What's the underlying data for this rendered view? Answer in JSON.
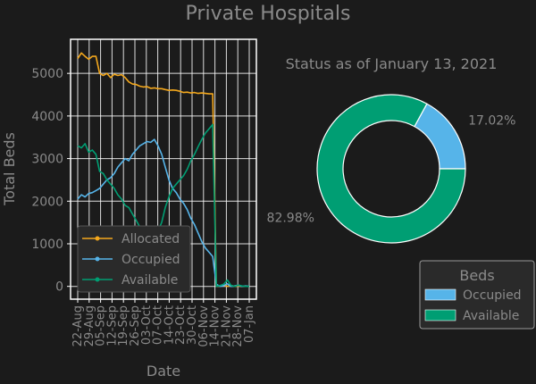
{
  "figure_title": "Private Hospitals",
  "colors": {
    "background": "#1b1b1b",
    "text": "#8a8a8a",
    "axis": "#ffffff",
    "grid": "#ffffff",
    "allocated": "#f4a81d",
    "occupied": "#56b4e9",
    "available": "#009e73"
  },
  "chart_data": [
    {
      "type": "line",
      "xlabel": "Date",
      "ylabel": "Total Beds",
      "ylim": [
        -300,
        5800
      ],
      "yticks": [
        0,
        1000,
        2000,
        3000,
        4000,
        5000
      ],
      "grid": true,
      "legend_position": "lower-left",
      "xtick_labels": [
        "22-Aug",
        "29-Aug",
        "05-Sep",
        "12-Sep",
        "19-Sep",
        "26-Sep",
        "03-Oct",
        "07-Oct",
        "14-Oct",
        "23-Oct",
        "30-Oct",
        "06-Nov",
        "14-Nov",
        "21-Nov",
        "28-Nov",
        "07-Jan"
      ],
      "series": [
        {
          "name": "Allocated",
          "color": "#f4a81d",
          "values": [
            5350,
            5480,
            5400,
            5330,
            5400,
            5400,
            5000,
            4950,
            5000,
            4900,
            4980,
            4950,
            4970,
            4900,
            4800,
            4750,
            4740,
            4700,
            4680,
            4690,
            4650,
            4660,
            4640,
            4640,
            4620,
            4600,
            4610,
            4600,
            4580,
            4550,
            4560,
            4540,
            4550,
            4530,
            4540,
            4530,
            4520,
            4520,
            0,
            10,
            30,
            0,
            20,
            0,
            10,
            0,
            0,
            0
          ]
        },
        {
          "name": "Occupied",
          "color": "#56b4e9",
          "values": [
            2050,
            2150,
            2100,
            2180,
            2200,
            2250,
            2300,
            2400,
            2500,
            2550,
            2650,
            2800,
            2900,
            3000,
            2950,
            3100,
            3200,
            3300,
            3350,
            3400,
            3380,
            3450,
            3300,
            3100,
            2800,
            2500,
            2300,
            2200,
            2050,
            1950,
            1800,
            1600,
            1450,
            1250,
            1050,
            900,
            800,
            700,
            50,
            0,
            20,
            60,
            0,
            10,
            30,
            0,
            10,
            0
          ]
        },
        {
          "name": "Available",
          "color": "#009e73",
          "values": [
            3300,
            3250,
            3350,
            3150,
            3200,
            3100,
            2700,
            2650,
            2500,
            2400,
            2300,
            2150,
            2050,
            1900,
            1850,
            1700,
            1550,
            1400,
            1350,
            1300,
            1250,
            1200,
            1300,
            1500,
            1850,
            2100,
            2300,
            2400,
            2500,
            2600,
            2750,
            2950,
            3100,
            3280,
            3450,
            3600,
            3700,
            3800,
            0,
            20,
            50,
            150,
            20,
            0,
            30,
            10,
            0,
            0
          ]
        }
      ]
    },
    {
      "type": "pie",
      "title": "Status as of January 13, 2021",
      "legend_title": "Beds",
      "legend_position": "lower-right",
      "labels": [
        "Occupied",
        "Available"
      ],
      "values": [
        17.02,
        82.98
      ],
      "value_labels": [
        "17.02%",
        "82.98%"
      ],
      "colors": [
        "#56b4e9",
        "#009e73"
      ]
    }
  ]
}
